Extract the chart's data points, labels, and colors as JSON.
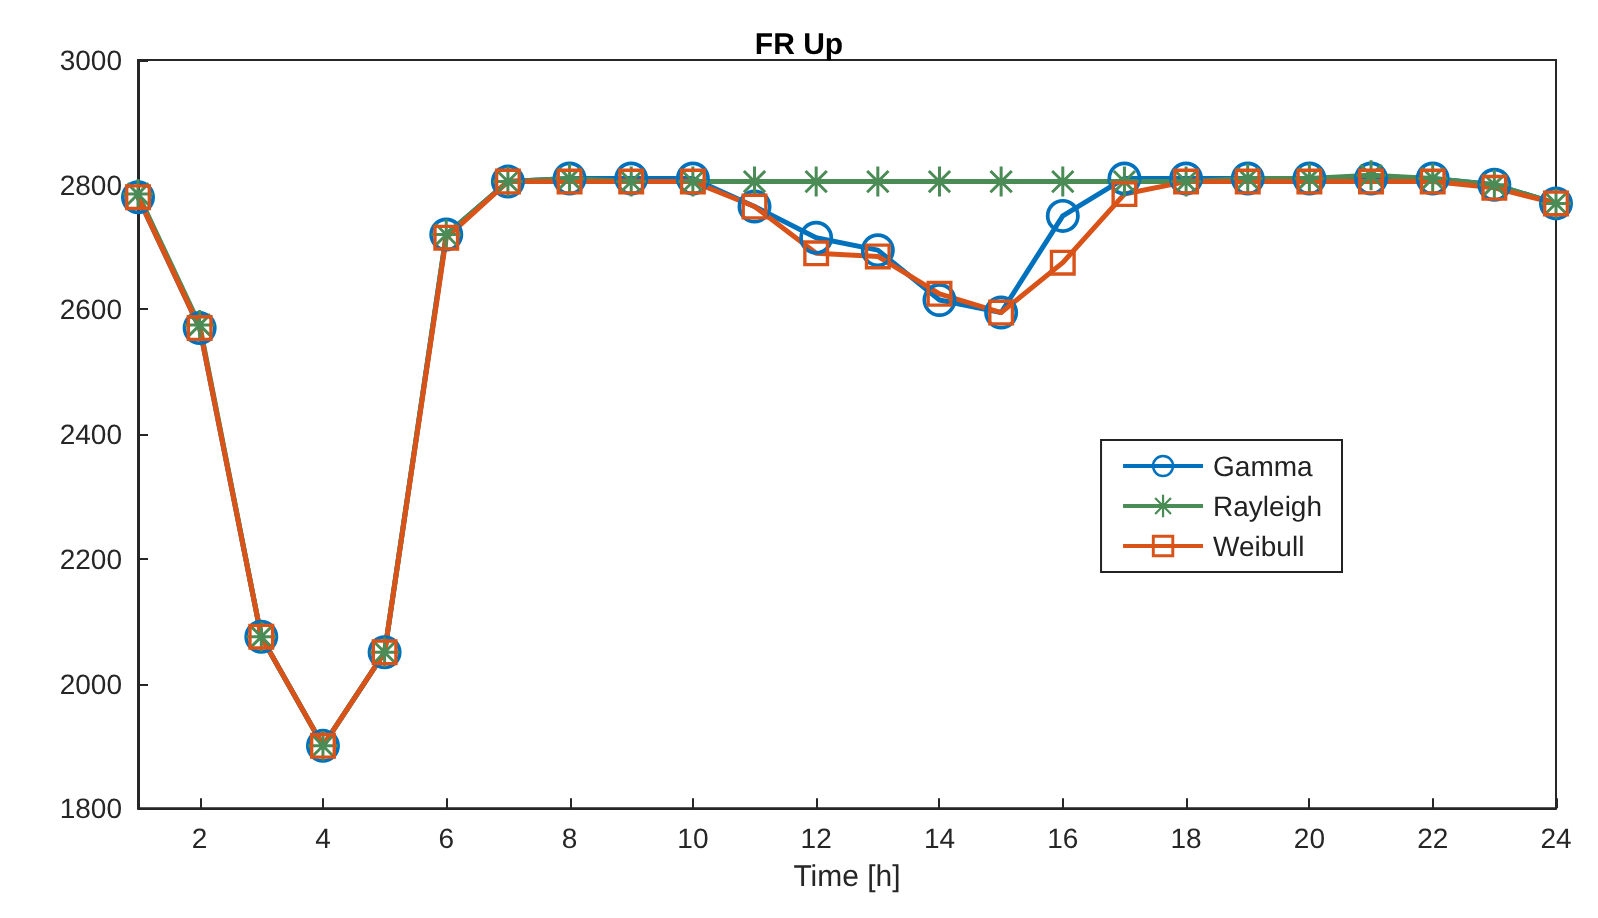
{
  "chart_data": {
    "type": "line",
    "title": "FR Up",
    "xlabel": "Time [h]",
    "x": [
      1,
      2,
      3,
      4,
      5,
      6,
      7,
      8,
      9,
      10,
      11,
      12,
      13,
      14,
      15,
      16,
      17,
      18,
      19,
      20,
      21,
      22,
      23,
      24
    ],
    "series": [
      {
        "name": "Gamma",
        "color": "#0072bd",
        "marker": "circle",
        "values": [
          2780,
          2570,
          2075,
          1900,
          2050,
          2720,
          2805,
          2810,
          2810,
          2810,
          2765,
          2715,
          2695,
          2615,
          2595,
          2750,
          2810,
          2810,
          2810,
          2810,
          2810,
          2810,
          2800,
          2770
        ]
      },
      {
        "name": "Rayleigh",
        "color": "#4a8b56",
        "marker": "star",
        "values": [
          2785,
          2575,
          2075,
          1900,
          2050,
          2720,
          2805,
          2810,
          2805,
          2805,
          2805,
          2805,
          2805,
          2805,
          2805,
          2805,
          2805,
          2805,
          2810,
          2810,
          2815,
          2810,
          2800,
          2770
        ]
      },
      {
        "name": "Weibull",
        "color": "#d95319",
        "marker": "square",
        "values": [
          2780,
          2570,
          2075,
          1900,
          2050,
          2715,
          2805,
          2805,
          2805,
          2805,
          2765,
          2690,
          2685,
          2625,
          2595,
          2675,
          2785,
          2805,
          2805,
          2805,
          2805,
          2805,
          2795,
          2770
        ]
      }
    ],
    "xlim": [
      1,
      24
    ],
    "xticks": [
      2,
      4,
      6,
      8,
      10,
      12,
      14,
      16,
      18,
      20,
      22,
      24
    ],
    "ylim": [
      1800,
      3000
    ],
    "yticks": [
      1800,
      2000,
      2200,
      2400,
      2600,
      2800,
      3000
    ],
    "legend": "right",
    "grid": false
  }
}
